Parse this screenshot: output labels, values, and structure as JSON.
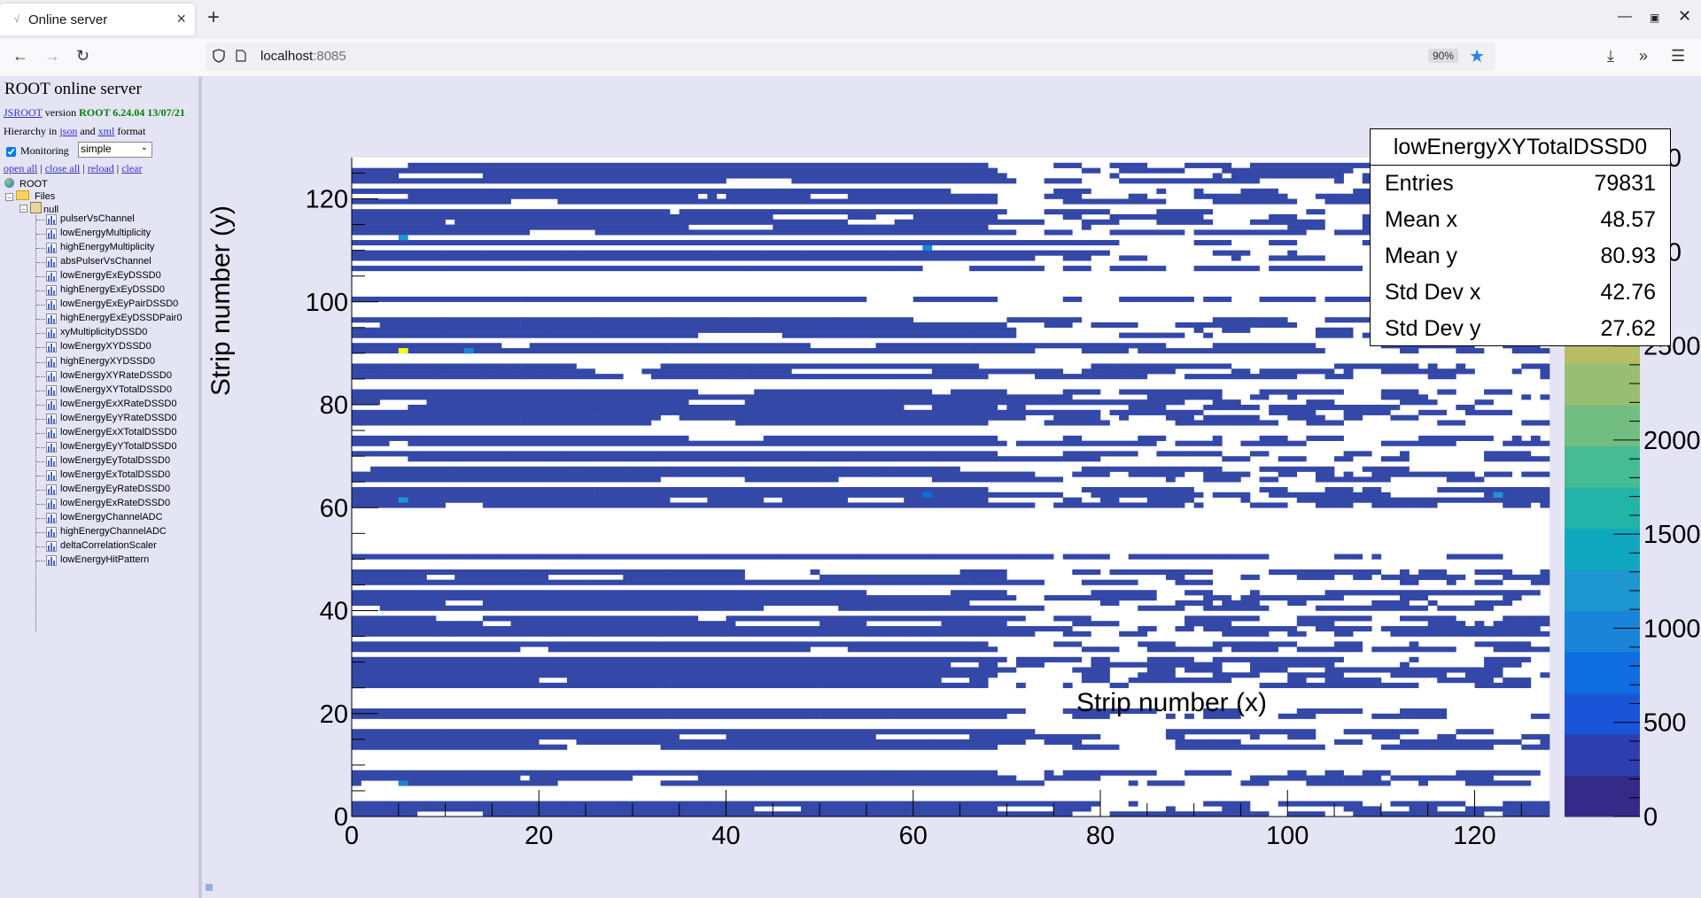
{
  "browser": {
    "tab_title": "Online server",
    "url_host": "localhost",
    "url_port": ":8085",
    "zoom": "90%"
  },
  "server": {
    "title": "ROOT online server",
    "jsroot_link": "JSROOT",
    "version_word": "version",
    "version_value": "ROOT 6.24.04 13/07/21",
    "hierarchy_prefix": "Hierarchy in",
    "json_link": "json",
    "and_word": "and",
    "xml_link": "xml",
    "format_word": "format",
    "monitoring_label": "Monitoring",
    "monitoring_mode": "simple",
    "links": [
      "open all",
      "close all",
      "reload",
      "clear"
    ]
  },
  "tree": {
    "root": "ROOT",
    "files": "Files",
    "null_folder": "null",
    "items": [
      "pulserVsChannel",
      "lowEnergyMultiplicity",
      "highEnergyMultiplicity",
      "absPulserVsChannel",
      "lowEnergyExEyDSSD0",
      "highEnergyExEyDSSD0",
      "lowEnergyExEyPairDSSD0",
      "highEnergyExEyDSSDPair0",
      "xyMultiplicityDSSD0",
      "lowEnergyXYDSSD0",
      "highEnergyXYDSSD0",
      "lowEnergyXYRateDSSD0",
      "lowEnergyXYTotalDSSD0",
      "lowEnergyExXRateDSSD0",
      "lowEnergyEyYRateDSSD0",
      "lowEnergyExXTotalDSSD0",
      "lowEnergyEyYTotalDSSD0",
      "lowEnergyEyTotalDSSD0",
      "lowEnergyExTotalDSSD0",
      "lowEnergyEyRateDSSD0",
      "lowEnergyExRateDSSD0",
      "lowEnergyChannelADC",
      "highEnergyChannelADC",
      "deltaCorrelationScaler",
      "lowEnergyHitPattern"
    ]
  },
  "stats": {
    "title": "lowEnergyXYTotalDSSD0",
    "rows": [
      {
        "label": "Entries",
        "value": "79831"
      },
      {
        "label": "Mean x",
        "value": "48.57"
      },
      {
        "label": "Mean y",
        "value": "80.93"
      },
      {
        "label": "Std Dev x",
        "value": "42.76"
      },
      {
        "label": "Std Dev y",
        "value": "27.62"
      }
    ]
  },
  "chart_data": {
    "type": "heatmap",
    "title": "lowEnergyXYTotalDSSD0",
    "xlabel": "Strip number (x)",
    "ylabel": "Strip number (y)",
    "xlim": [
      0,
      128
    ],
    "ylim": [
      0,
      128
    ],
    "x_ticks": [
      0,
      20,
      40,
      60,
      80,
      100,
      120
    ],
    "y_ticks": [
      0,
      20,
      40,
      60,
      80,
      100,
      120
    ],
    "z_ticks": [
      0,
      500,
      1000,
      1500,
      2000,
      2500
    ],
    "z_partial_ticks": [
      "00",
      "00"
    ],
    "zlim": [
      0,
      3500
    ],
    "note": "Sparse 128x128 strip-hit map; most filled bins near 0-200 counts (dark blue), a few hot bins.",
    "rows_filled_y": [
      0,
      1,
      2,
      6,
      7,
      8,
      13,
      14,
      15,
      16,
      19,
      20,
      25,
      26,
      27,
      28,
      29,
      30,
      32,
      33,
      35,
      36,
      37,
      38,
      40,
      41,
      42,
      43,
      45,
      46,
      47,
      50,
      60,
      61,
      62,
      63,
      65,
      66,
      67,
      69,
      70,
      72,
      73,
      76,
      77,
      78,
      79,
      80,
      81,
      82,
      85,
      86,
      87,
      90,
      91,
      93,
      94,
      95,
      96,
      100,
      106,
      108,
      109,
      111,
      113,
      114,
      115,
      116,
      117,
      119,
      120,
      121,
      123,
      124,
      125,
      126
    ],
    "hot_bins": [
      {
        "x": 5,
        "y": 90,
        "z": 3300
      },
      {
        "x": 5,
        "y": 61,
        "z": 1300
      },
      {
        "x": 5,
        "y": 112,
        "z": 1100
      },
      {
        "x": 5,
        "y": 6,
        "z": 900
      },
      {
        "x": 12,
        "y": 90,
        "z": 900
      },
      {
        "x": 61,
        "y": 110,
        "z": 900
      },
      {
        "x": 61,
        "y": 62,
        "z": 800
      },
      {
        "x": 122,
        "y": 62,
        "z": 1300
      }
    ]
  },
  "colors": {
    "background": "#e4e4f4",
    "low_bin": "#3448a8",
    "palette": [
      "#352a87",
      "#2d3fb0",
      "#1a55d8",
      "#0e6de0",
      "#1a84d8",
      "#1e96d0",
      "#10a8c0",
      "#22b4a8",
      "#45bc94",
      "#72be80",
      "#98be72",
      "#b8bc64",
      "#d4ba56",
      "#ecc03c",
      "#f8d028",
      "#f9fb0e"
    ]
  }
}
